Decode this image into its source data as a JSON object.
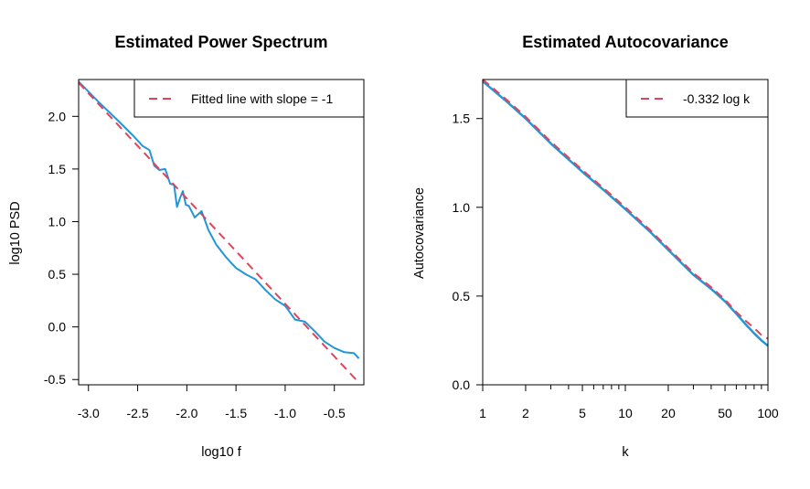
{
  "colors": {
    "series": "#2196d8",
    "fit": "#e0445a",
    "axis": "#000000",
    "background": "#ffffff"
  },
  "chart_data": [
    {
      "type": "line",
      "title": "Estimated Power Spectrum",
      "xlabel": "log10 f",
      "ylabel": "log10 PSD",
      "xlim": [
        -3.1,
        -0.2
      ],
      "ylim": [
        -0.55,
        2.35
      ],
      "xticks": [
        -3.0,
        -2.5,
        -2.0,
        -1.5,
        -1.0,
        -0.5
      ],
      "xtick_labels": [
        "-3.0",
        "-2.5",
        "-2.0",
        "-1.5",
        "-1.0",
        "-0.5"
      ],
      "yticks": [
        -0.5,
        0.0,
        0.5,
        1.0,
        1.5,
        2.0
      ],
      "ytick_labels": [
        "-0.5",
        "0.0",
        "0.5",
        "1.0",
        "1.5",
        "2.0"
      ],
      "legend": {
        "position": "top-right",
        "entries": [
          "Fitted line with slope = -1"
        ]
      },
      "series": [
        {
          "x": [
            -3.1,
            -2.9,
            -2.7,
            -2.55,
            -2.45,
            -2.38,
            -2.33,
            -2.28,
            -2.22,
            -2.17,
            -2.13,
            -2.1,
            -2.07,
            -2.04,
            -2.01,
            -1.98,
            -1.92,
            -1.85,
            -1.78,
            -1.7,
            -1.6,
            -1.5,
            -1.4,
            -1.3,
            -1.2,
            -1.1,
            -1.0,
            -0.9,
            -0.8,
            -0.7,
            -0.6,
            -0.5,
            -0.4,
            -0.3,
            -0.25
          ],
          "y": [
            2.33,
            2.14,
            1.96,
            1.82,
            1.72,
            1.68,
            1.53,
            1.49,
            1.5,
            1.36,
            1.35,
            1.14,
            1.22,
            1.29,
            1.16,
            1.15,
            1.04,
            1.1,
            0.92,
            0.78,
            0.66,
            0.56,
            0.5,
            0.45,
            0.35,
            0.26,
            0.2,
            0.07,
            0.05,
            -0.04,
            -0.14,
            -0.2,
            -0.24,
            -0.25,
            -0.3
          ]
        },
        {
          "name": "Fitted line with slope = -1",
          "x": [
            -3.1,
            -0.25
          ],
          "y": [
            2.32,
            -0.53
          ]
        }
      ]
    },
    {
      "type": "line",
      "title": "Estimated Autocovariance",
      "xlabel": "k",
      "ylabel": "Autocovariance",
      "xscale": "log",
      "xlim": [
        1,
        100
      ],
      "ylim": [
        0.0,
        1.72
      ],
      "xticks": [
        1,
        2,
        5,
        10,
        20,
        50,
        100
      ],
      "xtick_labels": [
        "1",
        "2",
        "5",
        "10",
        "20",
        "50",
        "100"
      ],
      "yticks": [
        0.0,
        0.5,
        1.0,
        1.5
      ],
      "ytick_labels": [
        "0.0",
        "0.5",
        "1.0",
        "1.5"
      ],
      "legend": {
        "position": "top-right",
        "entries": [
          "-0.332 log k"
        ]
      },
      "series": [
        {
          "x": [
            1,
            1.5,
            2,
            3,
            4,
            5,
            7,
            10,
            15,
            20,
            30,
            40,
            50,
            60,
            70,
            80,
            90,
            100
          ],
          "y": [
            1.71,
            1.59,
            1.5,
            1.36,
            1.27,
            1.2,
            1.1,
            0.99,
            0.86,
            0.76,
            0.62,
            0.54,
            0.47,
            0.4,
            0.34,
            0.29,
            0.25,
            0.22
          ]
        },
        {
          "name": "-0.332 log k",
          "x": [
            1,
            1.5,
            2,
            3,
            4,
            5,
            7,
            10,
            15,
            20,
            30,
            40,
            50,
            60,
            70,
            80,
            90,
            100
          ],
          "y": [
            1.72,
            1.6,
            1.51,
            1.37,
            1.28,
            1.21,
            1.11,
            1.0,
            0.87,
            0.77,
            0.63,
            0.55,
            0.48,
            0.41,
            0.36,
            0.32,
            0.28,
            0.26
          ]
        }
      ]
    }
  ]
}
